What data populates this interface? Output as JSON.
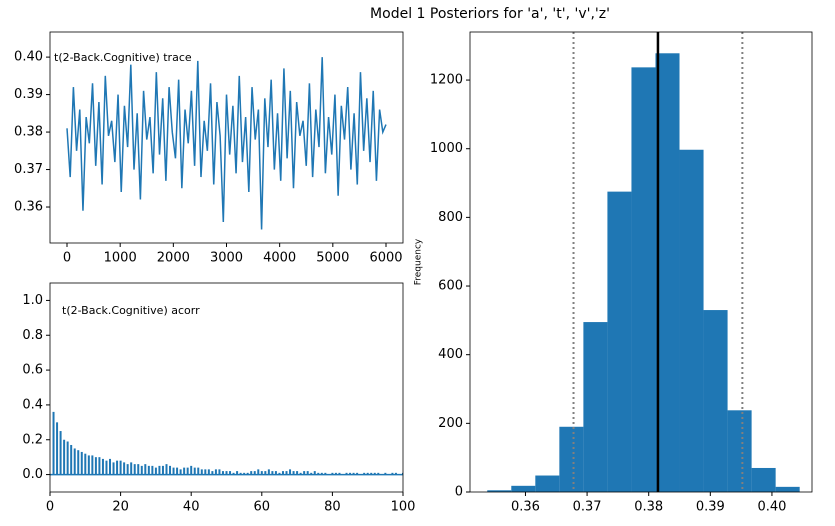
{
  "chart_data": [
    {
      "type": "line",
      "annotation": "t(2-Back.Cognitive) trace",
      "color": "#1f77b4",
      "x": [
        0,
        60,
        120,
        180,
        240,
        300,
        360,
        420,
        480,
        540,
        600,
        660,
        720,
        780,
        840,
        900,
        960,
        1020,
        1080,
        1140,
        1200,
        1260,
        1320,
        1380,
        1440,
        1500,
        1560,
        1620,
        1680,
        1740,
        1800,
        1860,
        1920,
        1980,
        2040,
        2100,
        2160,
        2220,
        2280,
        2340,
        2400,
        2460,
        2520,
        2580,
        2640,
        2700,
        2760,
        2820,
        2880,
        2940,
        3000,
        3060,
        3120,
        3180,
        3240,
        3300,
        3360,
        3420,
        3480,
        3540,
        3600,
        3660,
        3720,
        3780,
        3840,
        3900,
        3960,
        4020,
        4080,
        4140,
        4200,
        4260,
        4320,
        4380,
        4440,
        4500,
        4560,
        4620,
        4680,
        4740,
        4800,
        4860,
        4920,
        4980,
        5040,
        5100,
        5160,
        5220,
        5280,
        5340,
        5400,
        5460,
        5520,
        5580,
        5640,
        5700,
        5760,
        5820,
        5880,
        5940,
        6000
      ],
      "values": [
        0.381,
        0.368,
        0.392,
        0.375,
        0.386,
        0.359,
        0.384,
        0.377,
        0.393,
        0.371,
        0.388,
        0.366,
        0.395,
        0.379,
        0.383,
        0.372,
        0.39,
        0.364,
        0.387,
        0.376,
        0.398,
        0.37,
        0.385,
        0.362,
        0.391,
        0.378,
        0.384,
        0.369,
        0.396,
        0.374,
        0.389,
        0.367,
        0.392,
        0.38,
        0.373,
        0.394,
        0.365,
        0.386,
        0.377,
        0.391,
        0.371,
        0.399,
        0.368,
        0.383,
        0.375,
        0.393,
        0.366,
        0.388,
        0.379,
        0.356,
        0.39,
        0.374,
        0.387,
        0.369,
        0.395,
        0.372,
        0.384,
        0.364,
        0.392,
        0.378,
        0.386,
        0.354,
        0.389,
        0.376,
        0.394,
        0.37,
        0.385,
        0.367,
        0.397,
        0.373,
        0.391,
        0.365,
        0.388,
        0.379,
        0.383,
        0.371,
        0.393,
        0.368,
        0.386,
        0.376,
        0.4,
        0.369,
        0.384,
        0.374,
        0.39,
        0.363,
        0.387,
        0.378,
        0.392,
        0.37,
        0.385,
        0.366,
        0.396,
        0.375,
        0.389,
        0.372,
        0.391,
        0.367,
        0.386,
        0.38,
        0.382
      ],
      "xlim": [
        -320,
        6320
      ],
      "xticks": [
        0,
        1000,
        2000,
        3000,
        4000,
        5000,
        6000
      ],
      "ylim": [
        0.3504,
        0.4067
      ],
      "yticks": [
        0.36,
        0.37,
        0.38,
        0.39,
        {
          "value": 0.4,
          "label": "0.40"
        }
      ]
    },
    {
      "type": "stem",
      "annotation": "t(2-Back.Cognitive) acorr",
      "color": "#1f77b4",
      "x": [
        1,
        2,
        3,
        4,
        5,
        6,
        7,
        8,
        9,
        10,
        11,
        12,
        13,
        14,
        15,
        16,
        17,
        18,
        19,
        20,
        21,
        22,
        23,
        24,
        25,
        26,
        27,
        28,
        29,
        30,
        31,
        32,
        33,
        34,
        35,
        36,
        37,
        38,
        39,
        40,
        41,
        42,
        43,
        44,
        45,
        46,
        47,
        48,
        49,
        50,
        51,
        52,
        53,
        54,
        55,
        56,
        57,
        58,
        59,
        60,
        61,
        62,
        63,
        64,
        65,
        66,
        67,
        68,
        69,
        70,
        71,
        72,
        73,
        74,
        75,
        76,
        77,
        78,
        79,
        80,
        81,
        82,
        83,
        84,
        85,
        86,
        87,
        88,
        89,
        90,
        91,
        92,
        93,
        94,
        95,
        96,
        97,
        98,
        99,
        100
      ],
      "values": [
        0.36,
        0.3,
        0.25,
        0.2,
        0.19,
        0.17,
        0.15,
        0.14,
        0.13,
        0.12,
        0.11,
        0.11,
        0.1,
        0.1,
        0.09,
        0.08,
        0.09,
        0.07,
        0.08,
        0.08,
        0.07,
        0.06,
        0.07,
        0.06,
        0.06,
        0.05,
        0.06,
        0.05,
        0.05,
        0.04,
        0.05,
        0.05,
        0.06,
        0.05,
        0.04,
        0.04,
        0.03,
        0.04,
        0.04,
        0.05,
        0.04,
        0.04,
        0.03,
        0.03,
        0.03,
        0.02,
        0.03,
        0.03,
        0.02,
        0.02,
        0.02,
        0.01,
        0.02,
        0.01,
        0.01,
        0.01,
        0.02,
        0.02,
        0.03,
        0.02,
        0.02,
        0.03,
        0.02,
        0.02,
        0.01,
        0.02,
        0.02,
        0.03,
        0.02,
        0.02,
        0.01,
        0.02,
        0.02,
        0.01,
        0.02,
        0.01,
        0.01,
        0.01,
        0,
        0.01,
        0.01,
        0.01,
        0,
        0.01,
        0.01,
        0.01,
        0.01,
        0,
        0.01,
        0.01,
        0.01,
        0.01,
        0.01,
        0,
        0.01,
        0,
        0.01,
        0.01,
        0,
        0.01
      ],
      "xlim": [
        0,
        100
      ],
      "xticks": [
        0,
        20,
        40,
        60,
        80,
        100
      ],
      "ylim": [
        -0.1,
        1.1
      ],
      "yticks": [
        {
          "value": 0,
          "label": "0.0"
        },
        0.2,
        0.4,
        0.6,
        0.8,
        {
          "value": 1,
          "label": "1.0"
        }
      ]
    },
    {
      "type": "histogram",
      "title": "Model 1 Posteriors for 'a', 't', 'v','z'",
      "ylabel": "Frequency",
      "color": "#1f77b4",
      "bins": [
        0.3538,
        0.3577,
        0.3616,
        0.3655,
        0.3694,
        0.3733,
        0.3772,
        0.3811,
        0.385,
        0.3889,
        0.3928,
        0.3967,
        0.4006,
        0.4045
      ],
      "counts": [
        5,
        18,
        48,
        190,
        495,
        875,
        1237,
        1278,
        997,
        530,
        238,
        70,
        15
      ],
      "vlines": [
        {
          "x": 0.3678,
          "color": "#808080",
          "dash": true
        },
        {
          "x": 0.3815,
          "color": "#000000",
          "dash": false
        },
        {
          "x": 0.3952,
          "color": "#808080",
          "dash": true
        }
      ],
      "xlim": [
        0.351,
        0.4065
      ],
      "xticks": [
        0.36,
        0.37,
        0.38,
        0.39,
        {
          "value": 0.4,
          "label": "0.40"
        }
      ],
      "ylim": [
        0,
        1340
      ],
      "yticks": [
        0,
        200,
        400,
        600,
        800,
        1000,
        1200
      ]
    }
  ]
}
